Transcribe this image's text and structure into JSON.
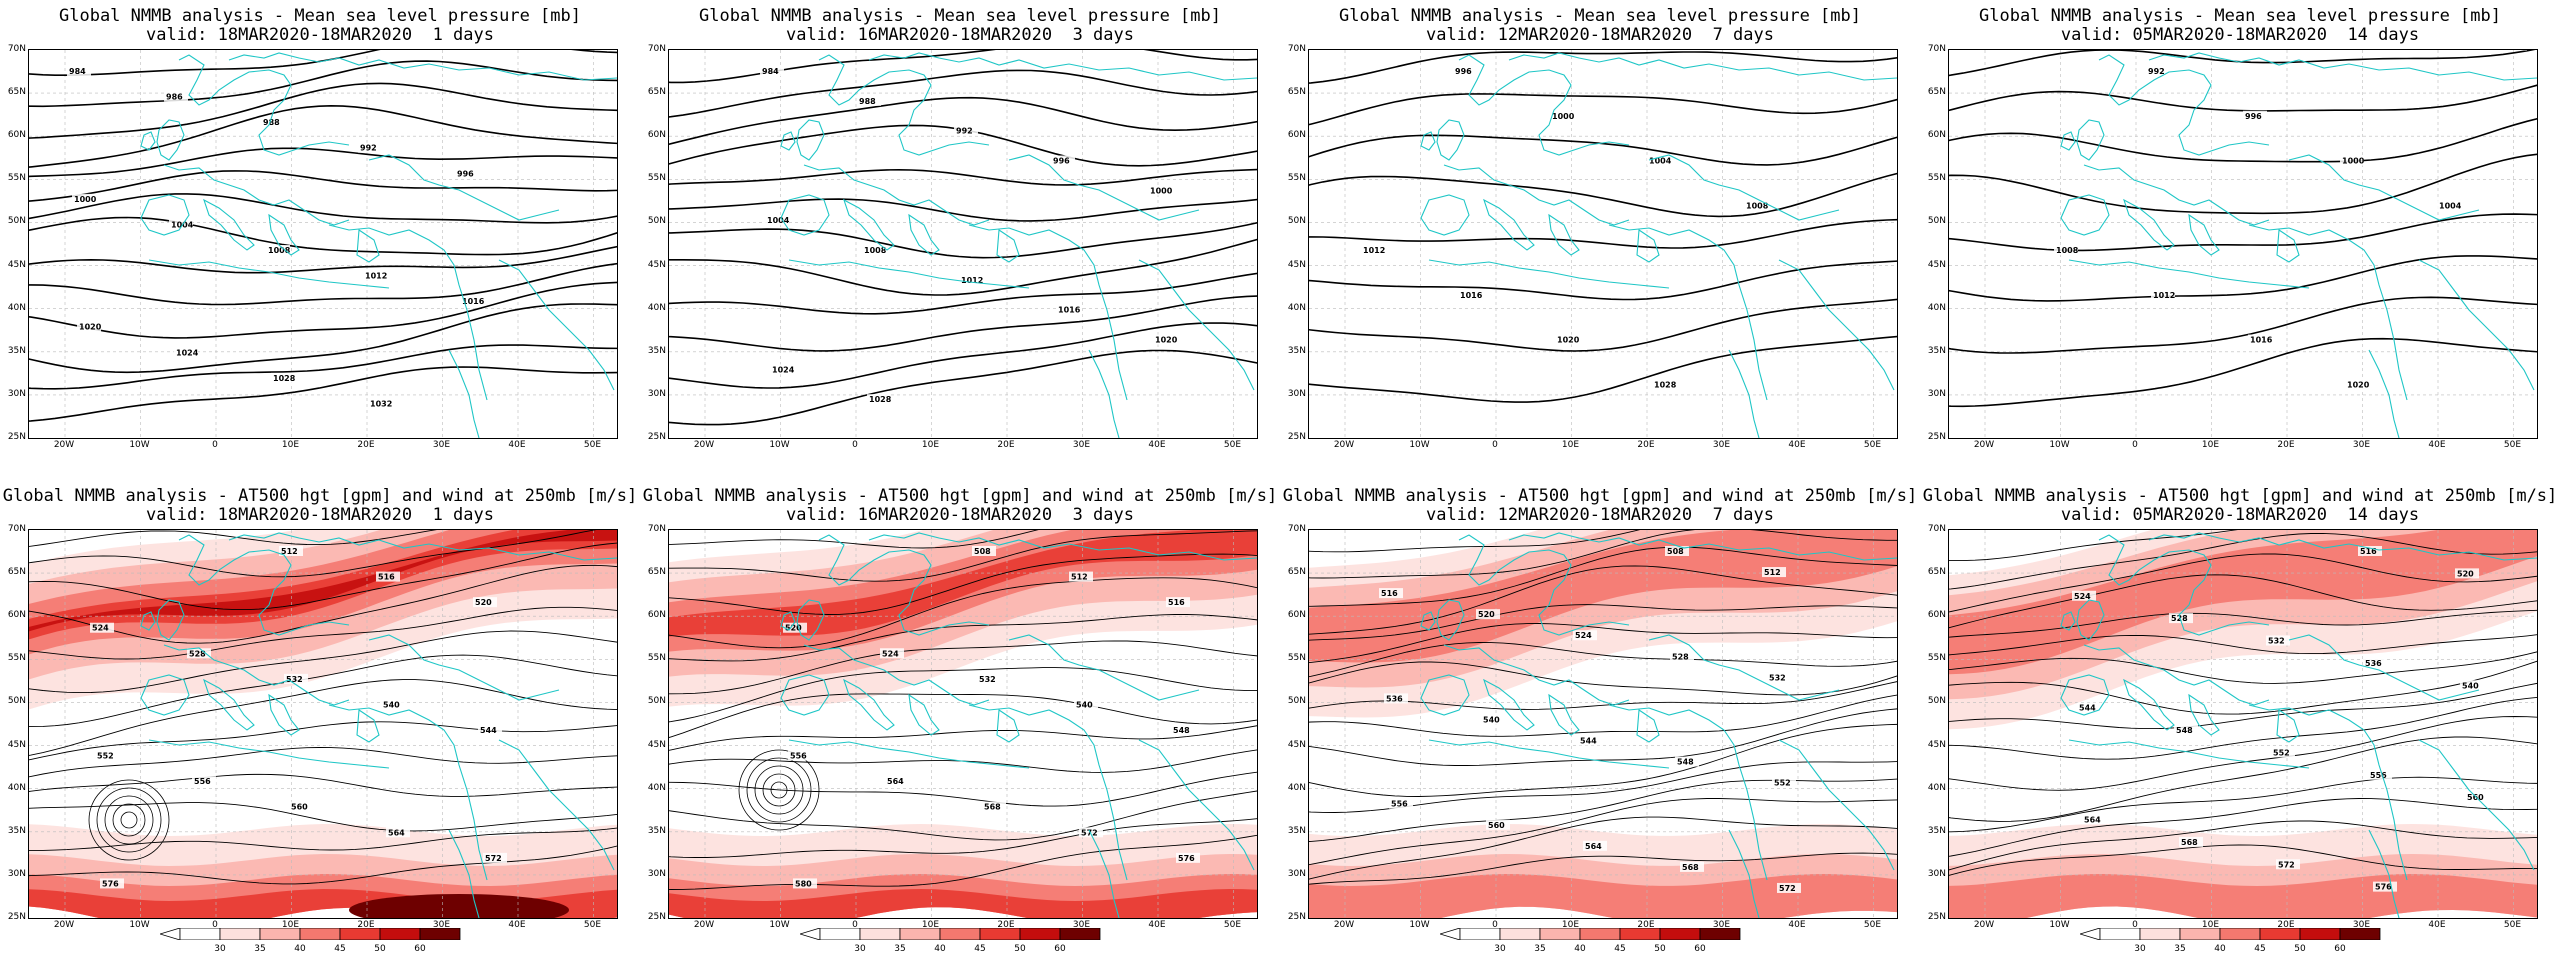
{
  "lat_labels": [
    "70N",
    "65N",
    "60N",
    "55N",
    "50N",
    "45N",
    "40N",
    "35N",
    "30N",
    "25N"
  ],
  "lon_labels": [
    "20W",
    "10W",
    "0",
    "10E",
    "20E",
    "30E",
    "40E",
    "50E"
  ],
  "colorbar": {
    "levels": [
      "30",
      "35",
      "40",
      "45",
      "50",
      "60"
    ],
    "colors": [
      "#ffffff",
      "#fde0dd",
      "#fbb4ae",
      "#f4786f",
      "#e83a32",
      "#c40d0d",
      "#6e0000"
    ]
  },
  "mslp_label": "Global NMMB analysis - Mean sea level pressure [mb]",
  "at500_label": "Global NMMB analysis - AT500 hgt [gpm] and wind at 250mb [m/s]",
  "panels": [
    {
      "id": "mslp-1",
      "row": 0,
      "col": 0,
      "valid": "valid: 18MAR2020-18MAR2020  1 days",
      "contours": [
        "984",
        "986",
        "988",
        "992",
        "996",
        "1000",
        "1004",
        "1008",
        "1012",
        "1016",
        "1020",
        "1024",
        "1028",
        "1032"
      ]
    },
    {
      "id": "mslp-3",
      "row": 0,
      "col": 1,
      "valid": "valid: 16MAR2020-18MAR2020  3 days",
      "contours": [
        "984",
        "988",
        "992",
        "996",
        "1000",
        "1004",
        "1008",
        "1012",
        "1016",
        "1020",
        "1024",
        "1028"
      ]
    },
    {
      "id": "mslp-7",
      "row": 0,
      "col": 2,
      "valid": "valid: 12MAR2020-18MAR2020  7 days",
      "contours": [
        "996",
        "1000",
        "1004",
        "1008",
        "1012",
        "1016",
        "1020",
        "1028"
      ]
    },
    {
      "id": "mslp-14",
      "row": 0,
      "col": 3,
      "valid": "valid: 05MAR2020-18MAR2020  14 days",
      "contours": [
        "992",
        "996",
        "1000",
        "1004",
        "1008",
        "1012",
        "1016",
        "1020"
      ]
    },
    {
      "id": "at500-1",
      "row": 1,
      "col": 0,
      "valid": "valid: 18MAR2020-18MAR2020  1 days",
      "contours": [
        "512",
        "516",
        "520",
        "524",
        "528",
        "532",
        "540",
        "544",
        "552",
        "556",
        "560",
        "564",
        "572",
        "576"
      ]
    },
    {
      "id": "at500-3",
      "row": 1,
      "col": 1,
      "valid": "valid: 16MAR2020-18MAR2020  3 days",
      "contours": [
        "508",
        "512",
        "516",
        "520",
        "524",
        "532",
        "540",
        "548",
        "556",
        "564",
        "568",
        "572",
        "576",
        "580"
      ]
    },
    {
      "id": "at500-7",
      "row": 1,
      "col": 2,
      "valid": "valid: 12MAR2020-18MAR2020  7 days",
      "contours": [
        "508",
        "512",
        "516",
        "520",
        "524",
        "528",
        "532",
        "536",
        "540",
        "544",
        "548",
        "552",
        "556",
        "560",
        "564",
        "568",
        "572"
      ]
    },
    {
      "id": "at500-14",
      "row": 1,
      "col": 3,
      "valid": "valid: 05MAR2020-18MAR2020  14 days",
      "contours": [
        "516",
        "520",
        "524",
        "528",
        "532",
        "536",
        "540",
        "544",
        "548",
        "552",
        "556",
        "560",
        "564",
        "568",
        "572",
        "576"
      ]
    }
  ]
}
